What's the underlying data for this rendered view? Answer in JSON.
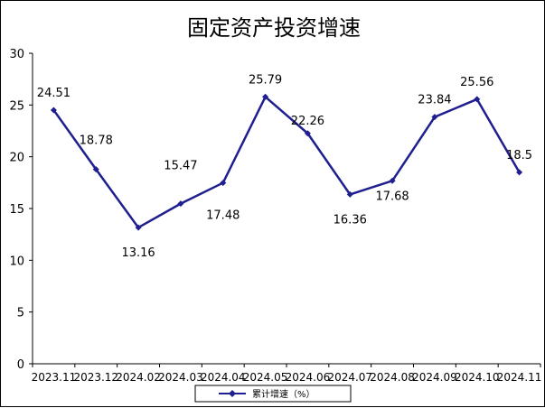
{
  "chart_data": {
    "type": "line",
    "title": "固定资产投资增速",
    "xlabel": "",
    "ylabel": "",
    "ylim": [
      0,
      30
    ],
    "yticks": [
      "0",
      "5",
      "10",
      "15",
      "20",
      "25",
      "30"
    ],
    "grid": false,
    "legend_position": "bottom-center",
    "categories": [
      "2023.11",
      "2023.12",
      "2024.02",
      "2024.03",
      "2024.04",
      "2024.05",
      "2024.06",
      "2024.07",
      "2024.08",
      "2024.09",
      "2024.10",
      "2024.11"
    ],
    "series": [
      {
        "name": "累计增速（%）",
        "color": "#1f1f8f",
        "marker": "diamond",
        "values": [
          24.51,
          18.78,
          13.16,
          15.47,
          17.48,
          25.79,
          22.26,
          16.36,
          17.68,
          23.84,
          25.56,
          18.5
        ],
        "labels": [
          "24.51",
          "18.78",
          "13.16",
          "15.47",
          "17.48",
          "25.79",
          "22.26",
          "16.36",
          "17.68",
          "23.84",
          "25.56",
          "18.5"
        ]
      }
    ]
  }
}
